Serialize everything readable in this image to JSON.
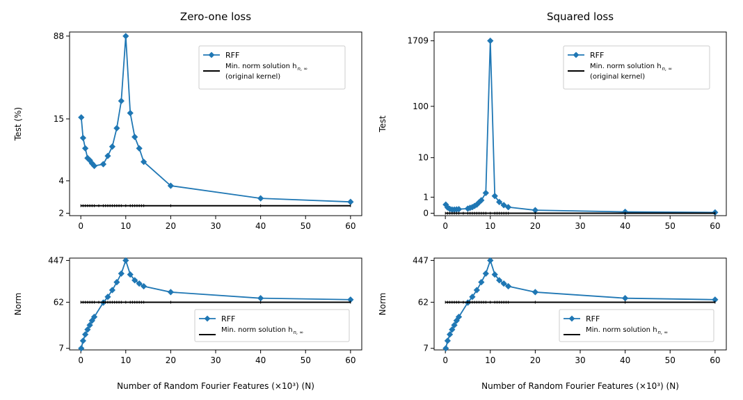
{
  "figure": {
    "xlabel": "Number of Random Fourier Features (×10³) (N)"
  },
  "styles": {
    "rff_color": "#1f77b4",
    "minnorm_color": "#000000"
  },
  "chart_data": [
    {
      "id": "zero_one_test",
      "type": "line",
      "title": "Zero-one loss",
      "ylabel": "Test (%)",
      "xlabel": "",
      "xlim": [
        -2.5,
        62.5
      ],
      "xticks": [
        0,
        10,
        20,
        30,
        40,
        50,
        60
      ],
      "yscale": "log",
      "ylim": [
        1.9,
        96
      ],
      "yticks": [
        2,
        4,
        15,
        88
      ],
      "ytick_labels": [
        "2",
        "4",
        "15",
        "88"
      ],
      "legend": {
        "position": "upper-right",
        "entries": [
          {
            "label": "RFF",
            "lines": [
              "RFF"
            ]
          },
          {
            "label": "Min. norm solution h_{n,∞} (original kernel)",
            "lines": [
              "Min. norm solution h",
              "(original kernel)"
            ],
            "subscript": "n, ∞"
          }
        ]
      },
      "series": [
        {
          "name": "RFF",
          "marker": "diamond",
          "x": [
            0.1,
            0.5,
            1,
            1.5,
            2,
            2.5,
            3,
            5,
            6,
            7,
            8,
            9,
            10,
            11,
            12,
            13,
            14,
            20,
            40,
            60
          ],
          "y": [
            15.5,
            10,
            8,
            6.5,
            6.2,
            5.8,
            5.5,
            5.7,
            6.8,
            8.3,
            12.3,
            22,
            88,
            17,
            10.2,
            8,
            6,
            3.6,
            2.75,
            2.55
          ]
        },
        {
          "name": "Min. norm solution",
          "marker": "tick",
          "x": [
            0,
            60
          ],
          "y": [
            2.35,
            2.35
          ]
        }
      ]
    },
    {
      "id": "squared_test",
      "type": "line",
      "title": "Squared loss",
      "ylabel": "Test",
      "xlabel": "",
      "xlim": [
        -2.5,
        62.5
      ],
      "xticks": [
        0,
        10,
        20,
        30,
        40,
        50,
        60
      ],
      "yscale": "log1p",
      "ylim": [
        -0.1,
        2500
      ],
      "yticks": [
        0,
        1,
        10,
        100,
        1709
      ],
      "ytick_labels": [
        "0",
        "1",
        "10",
        "100",
        "1709"
      ],
      "legend": {
        "position": "upper-right",
        "entries": [
          {
            "label": "RFF",
            "lines": [
              "RFF"
            ]
          },
          {
            "label": "Min. norm solution h_{n,∞} (original kernel)",
            "lines": [
              "Min. norm solution h",
              "(original kernel)"
            ],
            "subscript": "n, ∞"
          }
        ]
      },
      "series": [
        {
          "name": "RFF",
          "marker": "diamond",
          "x": [
            0.1,
            0.5,
            1,
            1.5,
            2,
            2.5,
            3,
            5,
            5.5,
            6,
            6.5,
            7,
            7.5,
            8,
            9,
            10,
            11,
            12,
            13,
            14,
            20,
            40,
            60
          ],
          "y": [
            0.45,
            0.28,
            0.2,
            0.17,
            0.17,
            0.18,
            0.19,
            0.22,
            0.26,
            0.3,
            0.37,
            0.45,
            0.6,
            0.75,
            1.4,
            1709,
            1.1,
            0.62,
            0.42,
            0.3,
            0.14,
            0.06,
            0.035
          ]
        },
        {
          "name": "Min. norm solution",
          "marker": "tick",
          "x": [
            0,
            60
          ],
          "y": [
            0,
            0
          ]
        }
      ]
    },
    {
      "id": "zero_one_norm",
      "type": "line",
      "title": "",
      "ylabel": "Norm",
      "xlabel": "Number of Random Fourier Features (×10³) (N)",
      "xlim": [
        -2.5,
        62.5
      ],
      "xticks": [
        0,
        10,
        20,
        30,
        40,
        50,
        60
      ],
      "yscale": "log",
      "ylim": [
        6.5,
        500
      ],
      "yticks": [
        7,
        62,
        447
      ],
      "ytick_labels": [
        "7",
        "62",
        "447"
      ],
      "legend": {
        "position": "lower-right",
        "entries": [
          {
            "label": "RFF",
            "lines": [
              "RFF"
            ]
          },
          {
            "label": "Min. norm solution h_{n,∞}",
            "lines": [
              "Min. norm solution h"
            ],
            "subscript": "n, ∞"
          }
        ]
      },
      "series": [
        {
          "name": "RFF",
          "marker": "diamond",
          "x": [
            0.1,
            0.5,
            1,
            1.5,
            2,
            2.5,
            3,
            5,
            6,
            7,
            8,
            9,
            10,
            11,
            12,
            13,
            14,
            20,
            40,
            60
          ],
          "y": [
            7,
            10,
            13.5,
            17,
            21,
            26,
            31,
            61,
            80,
            110,
            160,
            240,
            447,
            230,
            175,
            150,
            132,
            100,
            75,
            70
          ]
        },
        {
          "name": "Min. norm solution",
          "marker": "tick",
          "x": [
            0,
            60
          ],
          "y": [
            62,
            62
          ]
        }
      ]
    },
    {
      "id": "squared_norm",
      "type": "line",
      "title": "",
      "ylabel": "Norm",
      "xlabel": "Number of Random Fourier Features (×10³) (N)",
      "xlim": [
        -2.5,
        62.5
      ],
      "xticks": [
        0,
        10,
        20,
        30,
        40,
        50,
        60
      ],
      "yscale": "log",
      "ylim": [
        6.5,
        500
      ],
      "yticks": [
        7,
        62,
        447
      ],
      "ytick_labels": [
        "7",
        "62",
        "447"
      ],
      "legend": {
        "position": "lower-right",
        "entries": [
          {
            "label": "RFF",
            "lines": [
              "RFF"
            ]
          },
          {
            "label": "Min. norm solution h_{n,∞}",
            "lines": [
              "Min. norm solution h"
            ],
            "subscript": "n, ∞"
          }
        ]
      },
      "series": [
        {
          "name": "RFF",
          "marker": "diamond",
          "x": [
            0.1,
            0.5,
            1,
            1.5,
            2,
            2.5,
            3,
            5,
            6,
            7,
            8,
            9,
            10,
            11,
            12,
            13,
            14,
            20,
            40,
            60
          ],
          "y": [
            7,
            10,
            13.5,
            17,
            21,
            26,
            31,
            61,
            80,
            110,
            160,
            240,
            447,
            230,
            175,
            150,
            132,
            100,
            75,
            70
          ]
        },
        {
          "name": "Min. norm solution",
          "marker": "tick",
          "x": [
            0,
            60
          ],
          "y": [
            62,
            62
          ]
        }
      ]
    }
  ]
}
